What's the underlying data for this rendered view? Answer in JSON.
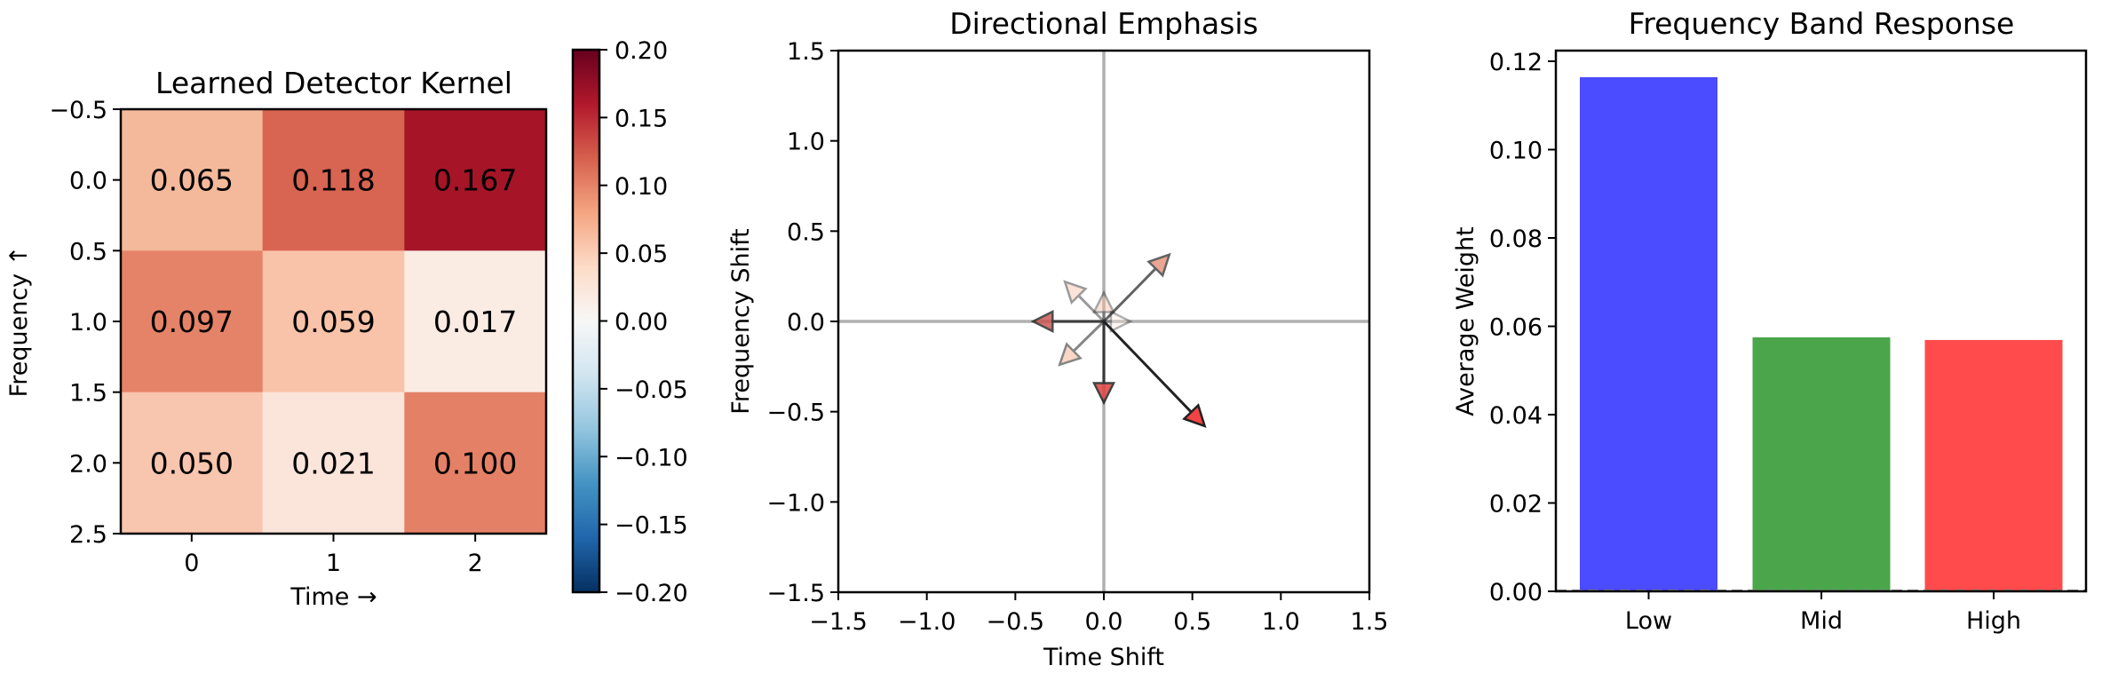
{
  "chart_data": [
    {
      "type": "heatmap",
      "title": "Learned Detector Kernel",
      "xlabel": "Time →",
      "ylabel": "Frequency ↑",
      "x_ticks": [
        "0",
        "1",
        "2"
      ],
      "y_ticks": [
        "−0.5",
        "0.0",
        "0.5",
        "1.0",
        "1.5",
        "2.0",
        "2.5"
      ],
      "xlim": [
        -0.5,
        2.5
      ],
      "ylim": [
        2.5,
        -0.5
      ],
      "values": [
        [
          0.065,
          0.118,
          0.167
        ],
        [
          0.097,
          0.059,
          0.017
        ],
        [
          0.05,
          0.021,
          0.1
        ]
      ],
      "cell_labels": [
        [
          "0.065",
          "0.118",
          "0.167"
        ],
        [
          "0.097",
          "0.059",
          "0.017"
        ],
        [
          "0.050",
          "0.021",
          "0.100"
        ]
      ],
      "cell_colors": [
        [
          "#f4b99b",
          "#d86452",
          "#a51527"
        ],
        [
          "#e58368",
          "#f8c3a9",
          "#faebe3"
        ],
        [
          "#f8c5ae",
          "#fbe5db",
          "#e48066"
        ]
      ],
      "colormap": "RdBu_r",
      "colorbar": {
        "vmin": -0.2,
        "vmax": 0.2,
        "ticks": [
          "0.20",
          "0.15",
          "0.10",
          "0.05",
          "0.00",
          "−0.05",
          "−0.10",
          "−0.15",
          "−0.20"
        ],
        "stops": [
          "#67001f",
          "#b2182b",
          "#d6604d",
          "#f4a582",
          "#fddbc7",
          "#f7f7f7",
          "#d1e5f0",
          "#92c5de",
          "#4393c3",
          "#2166ac",
          "#053061"
        ]
      }
    },
    {
      "type": "scatter",
      "subtype": "quiver",
      "title": "Directional Emphasis",
      "xlabel": "Time Shift",
      "ylabel": "Frequency Shift",
      "xlim": [
        -1.5,
        1.5
      ],
      "ylim": [
        -1.5,
        1.5
      ],
      "x_ticks": [
        "−1.5",
        "−1.0",
        "−0.5",
        "0.0",
        "0.5",
        "1.0",
        "1.5"
      ],
      "y_ticks": [
        "1.5",
        "1.0",
        "0.5",
        "0.0",
        "−0.5",
        "−1.0",
        "−1.5"
      ],
      "reference_lines": {
        "x": 0,
        "y": 0,
        "color": "#b0b0b0"
      },
      "arrows": [
        {
          "dx": 0.15,
          "dy": 0.0,
          "color": "#fbe5db",
          "alpha": 0.35
        },
        {
          "dx": 0.0,
          "dy": 0.16,
          "color": "#f6b89c",
          "alpha": 0.4
        },
        {
          "dx": -0.22,
          "dy": 0.22,
          "color": "#f9c3a8",
          "alpha": 0.45
        },
        {
          "dx": -0.25,
          "dy": -0.24,
          "color": "#f7b698",
          "alpha": 0.55
        },
        {
          "dx": 0.37,
          "dy": 0.37,
          "color": "#e48066",
          "alpha": 0.7
        },
        {
          "dx": -0.4,
          "dy": 0.0,
          "color": "#c9504a",
          "alpha": 0.8
        },
        {
          "dx": 0.0,
          "dy": -0.45,
          "color": "#e0413f",
          "alpha": 0.85
        },
        {
          "dx": 0.57,
          "dy": -0.58,
          "color": "#f24343",
          "alpha": 1.0
        }
      ]
    },
    {
      "type": "bar",
      "title": "Frequency Band Response",
      "xlabel": "",
      "ylabel": "Average Weight",
      "categories": [
        "Low",
        "Mid",
        "High"
      ],
      "values": [
        0.1164,
        0.0575,
        0.0569
      ],
      "colors": [
        "#4b4bff",
        "#4ba64b",
        "#ff4b4b"
      ],
      "ylim": [
        0,
        0.1225
      ],
      "y_ticks": [
        "0.00",
        "0.02",
        "0.04",
        "0.06",
        "0.08",
        "0.10",
        "0.12"
      ],
      "y_tick_values": [
        0,
        0.02,
        0.04,
        0.06,
        0.08,
        0.1,
        0.12
      ],
      "baseline": {
        "y": 0,
        "style": "dashed",
        "color": "#808080"
      }
    }
  ]
}
